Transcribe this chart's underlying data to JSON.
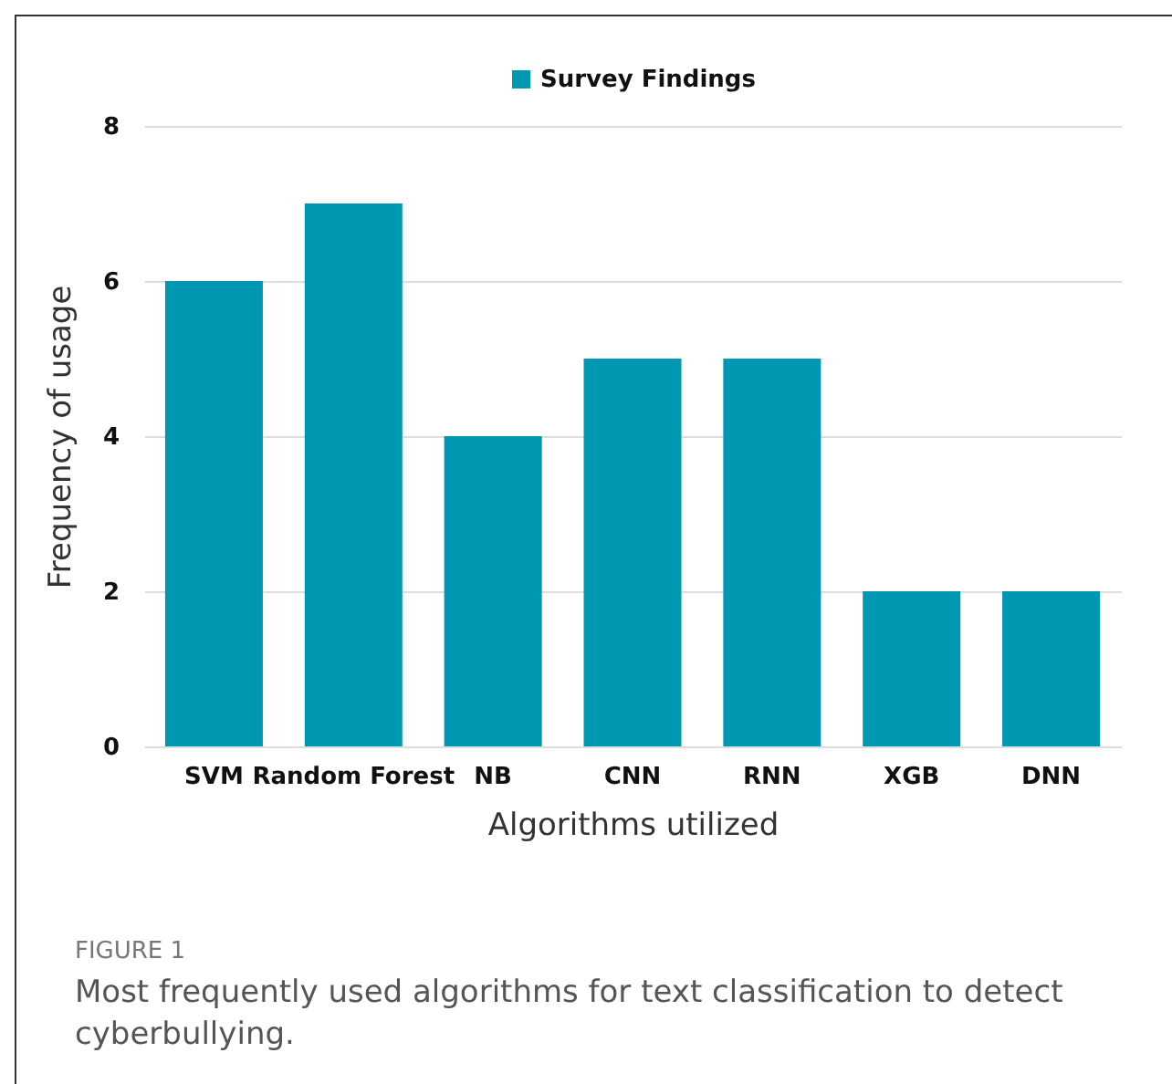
{
  "chart_data": {
    "type": "bar",
    "xlabel": "Algorithms utilized",
    "ylabel": "Frequency of usage",
    "categories": [
      "SVM",
      "Random Forest",
      "NB",
      "CNN",
      "RNN",
      "XGB",
      "DNN"
    ],
    "series": [
      {
        "name": "Survey Findings",
        "color": "#0097b2",
        "values": [
          6,
          7,
          4,
          5,
          5,
          2,
          2
        ]
      }
    ],
    "ylim": [
      0,
      8
    ],
    "yticks": [
      0,
      2,
      4,
      6,
      8
    ],
    "grid": "y",
    "legend": "top",
    "annotations": [
      "FIGURE 1",
      "Most frequently used algorithms for text classification to detect cyberbullying."
    ]
  }
}
